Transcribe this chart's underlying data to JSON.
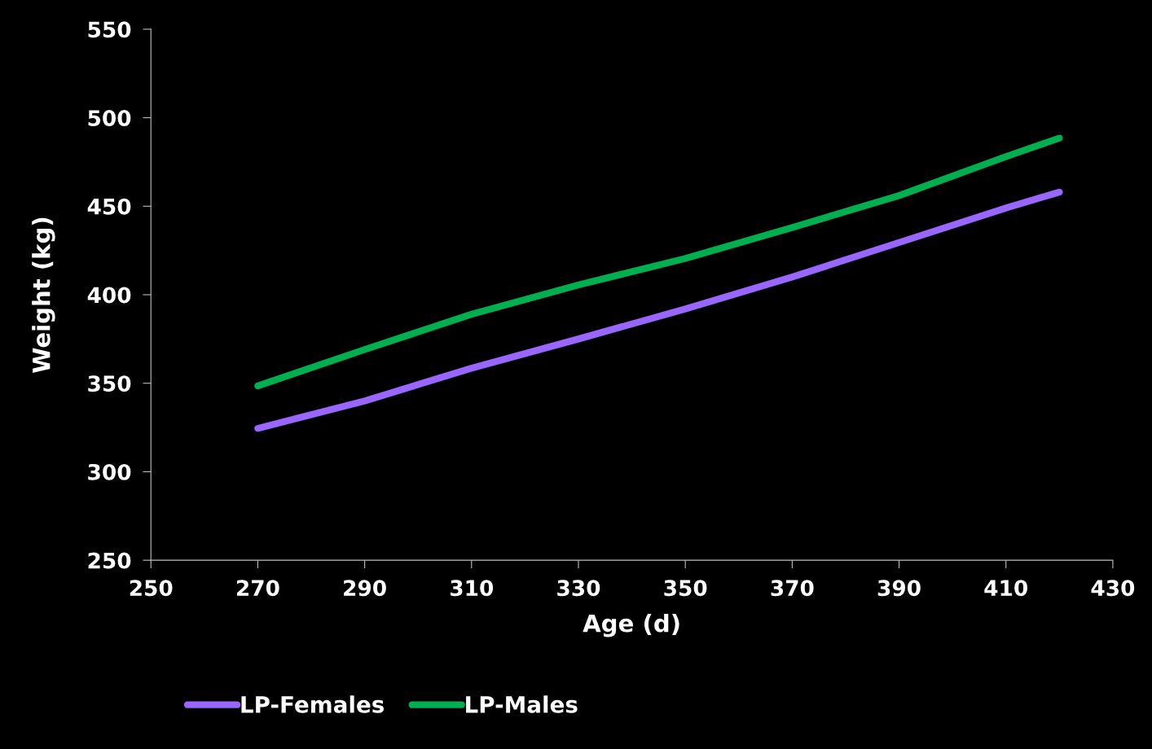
{
  "chart_data": {
    "type": "line",
    "xlabel": "Age (d)",
    "ylabel": "Weight (kg)",
    "xlim": [
      250,
      430
    ],
    "xticks": [
      250,
      270,
      290,
      310,
      330,
      350,
      370,
      390,
      410,
      430
    ],
    "ylim": [
      250,
      550
    ],
    "yticks": [
      250,
      300,
      350,
      400,
      450,
      500,
      550
    ],
    "grid": false,
    "legend": "bottom",
    "marker": "none",
    "line_style": "solid",
    "series": [
      {
        "name": "LP-Females",
        "color": "#9966ff",
        "x": [
          270,
          290,
          310,
          330,
          350,
          370,
          390,
          410,
          420
        ],
        "values": [
          324.5,
          340,
          358.5,
          375,
          392,
          410,
          429.5,
          449,
          458
        ]
      },
      {
        "name": "LP-Males",
        "color": "#00b050",
        "x": [
          270,
          290,
          310,
          330,
          350,
          370,
          390,
          410,
          420
        ],
        "values": [
          348.5,
          369,
          389,
          405.5,
          420.5,
          438,
          456,
          478,
          488.5
        ]
      }
    ]
  }
}
